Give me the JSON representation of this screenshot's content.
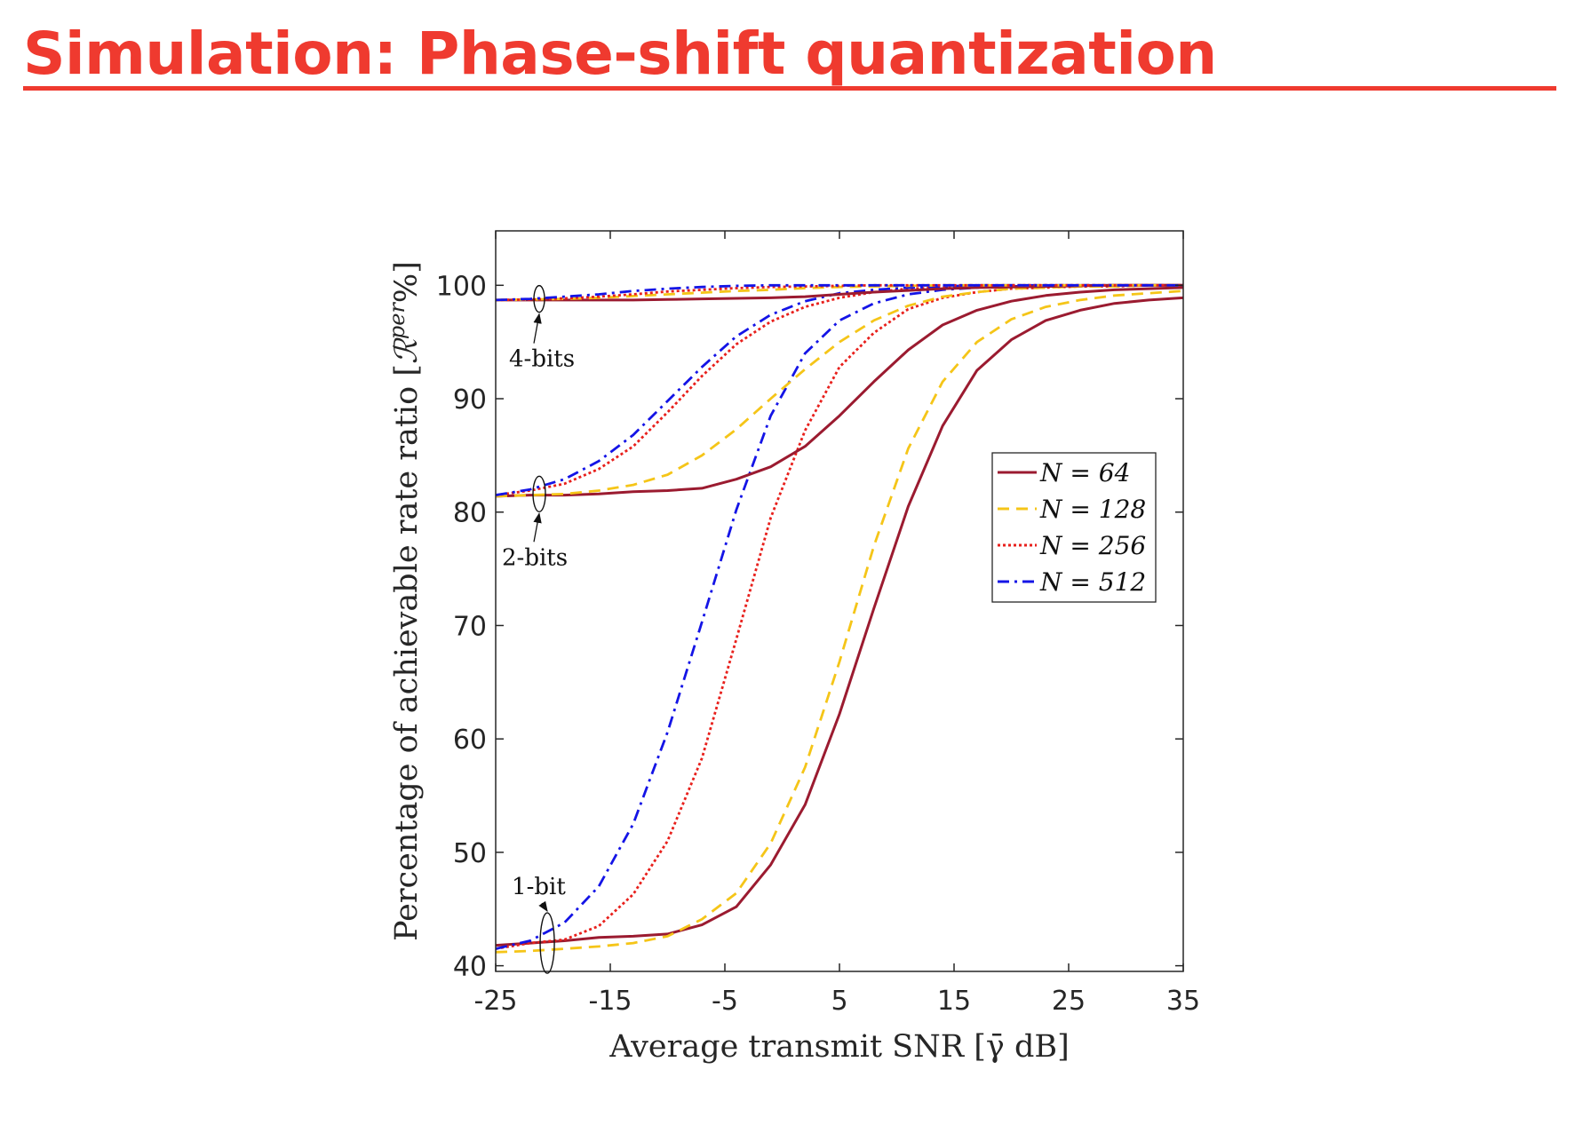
{
  "slide": {
    "title": "Simulation: Phase-shift quantization",
    "accent_color": "#ef3a2f"
  },
  "chart_data": {
    "type": "line",
    "xlabel": "Average transmit SNR [γ̄ dB]",
    "ylabel": "Percentage of achievable rate ratio [ℛ^{per} %]",
    "ylabel_main": "Percentage of achievable rate ratio [",
    "ylabel_symbol": "ℛ",
    "ylabel_sup": "per",
    "ylabel_tail": "%]",
    "xlim": [
      -25,
      35
    ],
    "ylim": [
      39.5,
      104.8
    ],
    "xticks": [
      -25,
      -15,
      -5,
      5,
      15,
      25,
      35
    ],
    "yticks": [
      40,
      50,
      60,
      70,
      80,
      90,
      100
    ],
    "grid": false,
    "legend_position": "center-right",
    "legend": [
      {
        "label": "N = 64",
        "color": "#9b1b30",
        "dash": "solid"
      },
      {
        "label": "N = 128",
        "color": "#f5c518",
        "dash": "dashed"
      },
      {
        "label": "N = 256",
        "color": "#e8201c",
        "dash": "dotted"
      },
      {
        "label": "N = 512",
        "color": "#1414e6",
        "dash": "dashdot"
      }
    ],
    "annotations": [
      {
        "text": "4-bits",
        "x": -21.2,
        "y": 98.8
      },
      {
        "text": "2-bits",
        "x": -21.2,
        "y": 81.6
      },
      {
        "text": "1-bit",
        "x": -20.5,
        "y": 42.0
      }
    ],
    "x": [
      -25,
      -22,
      -19,
      -16,
      -13,
      -10,
      -7,
      -4,
      -1,
      2,
      5,
      8,
      11,
      14,
      17,
      20,
      23,
      26,
      29,
      32,
      35
    ],
    "series": [
      {
        "name": "N = 64 (1-bit)",
        "group": "1-bit",
        "N": 64,
        "values": [
          41.8,
          42.0,
          42.2,
          42.5,
          42.6,
          42.8,
          43.6,
          45.2,
          48.9,
          54.2,
          62.2,
          71.5,
          80.5,
          87.6,
          92.5,
          95.2,
          96.9,
          97.8,
          98.4,
          98.7,
          98.9
        ]
      },
      {
        "name": "N = 128 (1-bit)",
        "group": "1-bit",
        "N": 128,
        "values": [
          41.2,
          41.3,
          41.5,
          41.7,
          42.0,
          42.6,
          44.1,
          46.4,
          50.8,
          57.5,
          66.8,
          77.0,
          85.6,
          91.5,
          95.0,
          97.0,
          98.1,
          98.7,
          99.1,
          99.3,
          99.5
        ]
      },
      {
        "name": "N = 256 (1-bit)",
        "group": "1-bit",
        "N": 256,
        "values": [
          41.5,
          42.0,
          42.3,
          43.5,
          46.3,
          51.0,
          58.3,
          68.8,
          79.5,
          87.2,
          92.8,
          95.8,
          97.9,
          98.9,
          99.4,
          99.7,
          99.8,
          99.9,
          99.9,
          100.0,
          100.0
        ]
      },
      {
        "name": "N = 512 (1-bit)",
        "group": "1-bit",
        "N": 512,
        "values": [
          41.5,
          42.2,
          43.8,
          47.0,
          52.5,
          60.6,
          70.3,
          80.2,
          88.5,
          94.0,
          96.9,
          98.4,
          99.2,
          99.6,
          99.8,
          99.9,
          100.0,
          100.0,
          100.0,
          100.0,
          100.0
        ]
      },
      {
        "name": "N = 64 (2-bits)",
        "group": "2-bits",
        "N": 64,
        "values": [
          81.4,
          81.5,
          81.5,
          81.6,
          81.8,
          81.9,
          82.1,
          82.9,
          84.0,
          85.8,
          88.5,
          91.5,
          94.3,
          96.5,
          97.8,
          98.6,
          99.1,
          99.4,
          99.6,
          99.7,
          99.8
        ]
      },
      {
        "name": "N = 128 (2-bits)",
        "group": "2-bits",
        "N": 128,
        "values": [
          81.4,
          81.5,
          81.6,
          81.9,
          82.4,
          83.3,
          85.0,
          87.3,
          90.0,
          92.6,
          95.0,
          96.9,
          98.2,
          99.0,
          99.4,
          99.7,
          99.8,
          99.9,
          99.9,
          100.0,
          100.0
        ]
      },
      {
        "name": "N = 256 (2-bits)",
        "group": "2-bits",
        "N": 256,
        "values": [
          81.5,
          81.9,
          82.5,
          83.8,
          85.8,
          88.8,
          92.0,
          94.8,
          96.8,
          98.1,
          98.9,
          99.4,
          99.7,
          99.8,
          99.9,
          100.0,
          100.0,
          100.0,
          100.0,
          100.0,
          100.0
        ]
      },
      {
        "name": "N = 512 (2-bits)",
        "group": "2-bits",
        "N": 512,
        "values": [
          81.5,
          82.0,
          82.9,
          84.5,
          86.8,
          89.8,
          92.8,
          95.5,
          97.4,
          98.6,
          99.3,
          99.6,
          99.8,
          99.9,
          100.0,
          100.0,
          100.0,
          100.0,
          100.0,
          100.0,
          100.0
        ]
      },
      {
        "name": "N = 64 (4-bits)",
        "group": "4-bits",
        "N": 64,
        "values": [
          98.7,
          98.7,
          98.7,
          98.7,
          98.7,
          98.75,
          98.8,
          98.85,
          98.9,
          99.0,
          99.2,
          99.4,
          99.55,
          99.7,
          99.8,
          99.85,
          99.9,
          99.95,
          100.0,
          100.0,
          100.0
        ]
      },
      {
        "name": "N = 128 (4-bits)",
        "group": "4-bits",
        "N": 128,
        "values": [
          98.7,
          98.75,
          98.8,
          98.9,
          99.05,
          99.2,
          99.35,
          99.5,
          99.6,
          99.75,
          99.85,
          99.9,
          99.95,
          100.0,
          100.0,
          100.0,
          100.0,
          100.0,
          100.0,
          100.0,
          100.0
        ]
      },
      {
        "name": "N = 256 (4-bits)",
        "group": "4-bits",
        "N": 256,
        "values": [
          98.7,
          98.75,
          98.85,
          99.0,
          99.2,
          99.45,
          99.6,
          99.75,
          99.85,
          99.9,
          99.95,
          100.0,
          100.0,
          100.0,
          100.0,
          100.0,
          100.0,
          100.0,
          100.0,
          100.0,
          100.0
        ]
      },
      {
        "name": "N = 512 (4-bits)",
        "group": "4-bits",
        "N": 512,
        "values": [
          98.7,
          98.8,
          99.0,
          99.2,
          99.5,
          99.7,
          99.85,
          99.95,
          100.0,
          100.0,
          100.0,
          100.0,
          100.0,
          100.0,
          100.0,
          100.0,
          100.0,
          100.0,
          100.0,
          100.0,
          100.0
        ]
      }
    ]
  }
}
